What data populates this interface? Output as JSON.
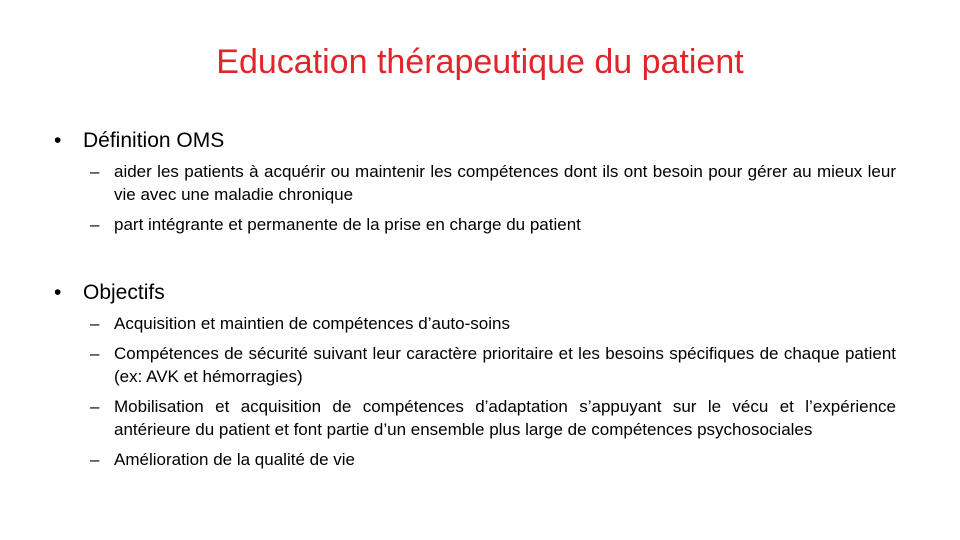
{
  "slide": {
    "title": "Education thérapeutique du patient",
    "title_color": "#e0262b",
    "sections": [
      {
        "bullet_symbol": "•",
        "heading": "Définition OMS",
        "items": [
          "aider les patients à acquérir ou maintenir les compétences dont ils ont besoin pour gérer au mieux leur vie avec une maladie chronique",
          "part intégrante et permanente de la prise en charge du patient"
        ]
      },
      {
        "bullet_symbol": "•",
        "heading": "Objectifs",
        "items": [
          "Acquisition et maintien de compétences d’auto-soins",
          "Compétences de sécurité  suivant leur caractère prioritaire et les besoins spécifiques de chaque patient (ex: AVK et hémorragies)",
          "Mobilisation et acquisition de compétences d’adaptation s’appuyant sur le vécu et l’expérience antérieure du patient et font partie d’un ensemble plus large de compétences psychosociales",
          "Amélioration de la qualité de vie"
        ]
      }
    ],
    "dash_symbol": "–"
  }
}
